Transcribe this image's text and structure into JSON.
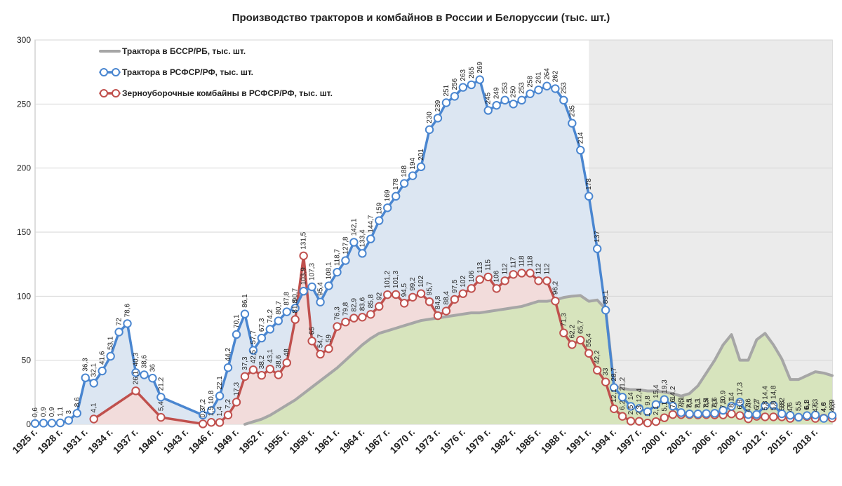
{
  "chart_data": {
    "type": "line",
    "title": "Производство тракторов и комбайнов в России и Белоруссии (тыс. шт.)",
    "xlabel": "",
    "ylabel": "",
    "ylim": [
      0,
      300
    ],
    "yticks": [
      "0",
      "50",
      "100",
      "150",
      "200",
      "250",
      "300"
    ],
    "xlim": [
      1925,
      2020
    ],
    "xtick_years": [
      1925,
      1928,
      1931,
      1934,
      1937,
      1940,
      1943,
      1946,
      1949,
      1952,
      1955,
      1958,
      1961,
      1964,
      1967,
      1970,
      1973,
      1976,
      1979,
      1982,
      1985,
      1988,
      1991,
      1994,
      1997,
      2000,
      2003,
      2006,
      2009,
      2012,
      2015,
      2018
    ],
    "xtick_labels": [
      "1925 г.",
      "1928 г.",
      "1931 г.",
      "1934 г.",
      "1937 г.",
      "1940 г.",
      "1943 г.",
      "1946 г.",
      "1949 г.",
      "1952 г.",
      "1955 г.",
      "1958 г.",
      "1961 г.",
      "1964 г.",
      "1967 г.",
      "1970 г.",
      "1973 г.",
      "1976 г.",
      "1979 г.",
      "1982 г.",
      "1985 г.",
      "1988 г.",
      "1991 г.",
      "1994 г.",
      "1997 г.",
      "2000 г.",
      "2003 г.",
      "2006 г.",
      "2009 г.",
      "2012 г.",
      "2015 г.",
      "2018 г."
    ],
    "grid": "horizontal",
    "legend": "top-left",
    "shaded_period": [
      1991,
      2020
    ],
    "series": [
      {
        "name": "Трактора в БССР/РБ, тыс. шт.",
        "color": "#a6a6a6",
        "fill": "#d7e4bd",
        "points": [
          [
            1950,
            0
          ],
          [
            1951,
            2
          ],
          [
            1952,
            4
          ],
          [
            1953,
            7
          ],
          [
            1954,
            11
          ],
          [
            1955,
            15
          ],
          [
            1956,
            19
          ],
          [
            1957,
            24
          ],
          [
            1958,
            29
          ],
          [
            1959,
            34
          ],
          [
            1960,
            39
          ],
          [
            1961,
            44
          ],
          [
            1962,
            50
          ],
          [
            1963,
            56
          ],
          [
            1964,
            62
          ],
          [
            1965,
            67
          ],
          [
            1966,
            71
          ],
          [
            1967,
            73
          ],
          [
            1968,
            75
          ],
          [
            1969,
            77
          ],
          [
            1970,
            79
          ],
          [
            1971,
            81
          ],
          [
            1972,
            82
          ],
          [
            1973,
            83
          ],
          [
            1974,
            84
          ],
          [
            1975,
            85
          ],
          [
            1976,
            86
          ],
          [
            1977,
            87
          ],
          [
            1978,
            87
          ],
          [
            1979,
            88
          ],
          [
            1980,
            89
          ],
          [
            1981,
            90
          ],
          [
            1982,
            91
          ],
          [
            1983,
            92
          ],
          [
            1984,
            94
          ],
          [
            1985,
            96
          ],
          [
            1986,
            96
          ],
          [
            1987,
            97
          ],
          [
            1988,
            99
          ],
          [
            1989,
            100
          ],
          [
            1990,
            100.5
          ],
          [
            1991,
            96
          ],
          [
            1992,
            97
          ],
          [
            1993,
            90
          ],
          [
            1994,
            30
          ],
          [
            1995,
            28
          ],
          [
            1996,
            27
          ],
          [
            1997,
            27
          ],
          [
            1998,
            26
          ],
          [
            1999,
            26
          ],
          [
            2000,
            25
          ],
          [
            2001,
            24
          ],
          [
            2002,
            22
          ],
          [
            2003,
            24
          ],
          [
            2004,
            30
          ],
          [
            2005,
            40
          ],
          [
            2006,
            50
          ],
          [
            2007,
            62
          ],
          [
            2008,
            70
          ],
          [
            2009,
            50
          ],
          [
            2010,
            50
          ],
          [
            2011,
            66
          ],
          [
            2012,
            71
          ],
          [
            2013,
            62
          ],
          [
            2014,
            51
          ],
          [
            2015,
            35
          ],
          [
            2016,
            35
          ],
          [
            2017,
            38
          ],
          [
            2018,
            41
          ],
          [
            2019,
            40
          ],
          [
            2020,
            38
          ]
        ]
      },
      {
        "name": "Трактора в РСФСР/РФ, тыс. шт.",
        "color": "#4a86d0",
        "fill": "#dce6f2",
        "points": [
          [
            1925,
            0.6
          ],
          [
            1926,
            0.9
          ],
          [
            1927,
            0.9
          ],
          [
            1928,
            1.1
          ],
          [
            1929,
            3
          ],
          [
            1930,
            8.6
          ],
          [
            1931,
            36.3
          ],
          [
            1932,
            32.1
          ],
          [
            1933,
            41.6
          ],
          [
            1934,
            53.1
          ],
          [
            1935,
            72
          ],
          [
            1936,
            78.6
          ],
          [
            1937,
            40.3
          ],
          [
            1938,
            38.6
          ],
          [
            1939,
            36
          ],
          [
            1940,
            21.2
          ],
          [
            1945,
            7.2
          ],
          [
            1946,
            10.8
          ],
          [
            1947,
            22.1
          ],
          [
            1948,
            44.2
          ],
          [
            1949,
            70.1
          ],
          [
            1950,
            86.1
          ],
          [
            1951,
            57.7
          ],
          [
            1952,
            67.3
          ],
          [
            1953,
            74.2
          ],
          [
            1954,
            80.7
          ],
          [
            1955,
            87.8
          ],
          [
            1956,
            90.7
          ],
          [
            1957,
            103.9
          ],
          [
            1958,
            107.3
          ],
          [
            1959,
            95.4
          ],
          [
            1960,
            108.1
          ],
          [
            1961,
            118.7
          ],
          [
            1962,
            127.8
          ],
          [
            1963,
            142.1
          ],
          [
            1964,
            133.4
          ],
          [
            1965,
            144.7
          ],
          [
            1966,
            159
          ],
          [
            1967,
            169
          ],
          [
            1968,
            178
          ],
          [
            1969,
            188
          ],
          [
            1970,
            194
          ],
          [
            1971,
            201
          ],
          [
            1972,
            230
          ],
          [
            1973,
            239
          ],
          [
            1974,
            251
          ],
          [
            1975,
            256
          ],
          [
            1976,
            263
          ],
          [
            1977,
            265
          ],
          [
            1978,
            269
          ],
          [
            1979,
            245
          ],
          [
            1980,
            249
          ],
          [
            1981,
            253
          ],
          [
            1982,
            250
          ],
          [
            1983,
            253
          ],
          [
            1984,
            258
          ],
          [
            1985,
            261
          ],
          [
            1986,
            264
          ],
          [
            1987,
            262
          ],
          [
            1988,
            253
          ],
          [
            1989,
            235
          ],
          [
            1990,
            214
          ],
          [
            1991,
            178
          ],
          [
            1992,
            137
          ],
          [
            1993,
            89.1
          ],
          [
            1994,
            28.7
          ],
          [
            1995,
            21.2
          ],
          [
            1996,
            14
          ],
          [
            1997,
            12.4
          ],
          [
            1998,
            9.8
          ],
          [
            1999,
            15.4
          ],
          [
            2000,
            19.3
          ],
          [
            2001,
            14.2
          ],
          [
            2002,
            9.1
          ],
          [
            2003,
            8.1
          ],
          [
            2004,
            8.1
          ],
          [
            2005,
            8.4
          ],
          [
            2006,
            8.6
          ],
          [
            2007,
            10.9
          ],
          [
            2008,
            14
          ],
          [
            2009,
            17.3
          ],
          [
            2010,
            7.6
          ],
          [
            2011,
            7.7
          ],
          [
            2012,
            14.4
          ],
          [
            2013,
            14.8
          ],
          [
            2014,
            8.2
          ],
          [
            2015,
            7
          ],
          [
            2016,
            5.5
          ],
          [
            2017,
            6.8
          ],
          [
            2018,
            7.3
          ],
          [
            2019,
            4.6
          ],
          [
            2020,
            6.9
          ]
        ],
        "labels": [
          "0,6",
          "0,9",
          "0,9",
          "1,1",
          "3",
          "8,6",
          "36,3",
          "32,1",
          "41,6",
          "53,1",
          "72",
          "78,6",
          "40,3",
          "38,6",
          "36",
          "21,2",
          "7,2",
          "10,8",
          "22,1",
          "44,2",
          "70,1",
          "86,1",
          "57,7",
          "67,3",
          "74,2",
          "80,7",
          "87,8",
          "90,7",
          "103,9",
          "107,3",
          "95,4",
          "108,1",
          "118,7",
          "127,8",
          "142,1",
          "133,4",
          "144,7",
          "159",
          "169",
          "178",
          "188",
          "194",
          "201",
          "230",
          "239",
          "251",
          "256",
          "263",
          "265",
          "269",
          "245",
          "249",
          "253",
          "250",
          "253",
          "258",
          "261",
          "264",
          "262",
          "253",
          "235",
          "214",
          "178",
          "137",
          "89,1",
          "28,7",
          "21,2",
          "14",
          "12,4",
          "9,8",
          "15,4",
          "19,3",
          "14,2",
          "9,1",
          "8,1",
          "8,1",
          "8,4",
          "8,6",
          "10,9",
          "14",
          "17,3",
          "7,6",
          "7,7",
          "14,4",
          "14,8",
          "8,2",
          "7",
          "5,5",
          "6,8",
          "7,3",
          "4,6",
          "6,9"
        ]
      },
      {
        "name": "Зерноуборочные комбайны в РСФСР/РФ, тыс. шт.",
        "color": "#c0504d",
        "fill": "#f2dcdb",
        "points": [
          [
            1932,
            4.1
          ],
          [
            1937,
            26.1
          ],
          [
            1940,
            5.4
          ],
          [
            1945,
            0.3
          ],
          [
            1946,
            1.5
          ],
          [
            1947,
            1.4
          ],
          [
            1948,
            7.2
          ],
          [
            1949,
            17.3
          ],
          [
            1950,
            37.3
          ],
          [
            1951,
            42.5
          ],
          [
            1952,
            38.2
          ],
          [
            1953,
            43.1
          ],
          [
            1954,
            38.6
          ],
          [
            1955,
            48
          ],
          [
            1956,
            81.8
          ],
          [
            1957,
            131.5
          ],
          [
            1958,
            65
          ],
          [
            1959,
            54.7
          ],
          [
            1960,
            59
          ],
          [
            1961,
            76.3
          ],
          [
            1962,
            79.8
          ],
          [
            1963,
            82.9
          ],
          [
            1964,
            83.6
          ],
          [
            1965,
            85.8
          ],
          [
            1966,
            92
          ],
          [
            1967,
            101.2
          ],
          [
            1968,
            101.3
          ],
          [
            1969,
            94.5
          ],
          [
            1970,
            99.2
          ],
          [
            1971,
            102
          ],
          [
            1972,
            95.7
          ],
          [
            1973,
            84.8
          ],
          [
            1974,
            88.4
          ],
          [
            1975,
            97.5
          ],
          [
            1976,
            102
          ],
          [
            1977,
            106
          ],
          [
            1978,
            113
          ],
          [
            1979,
            115
          ],
          [
            1980,
            106
          ],
          [
            1981,
            112
          ],
          [
            1982,
            117
          ],
          [
            1983,
            118
          ],
          [
            1984,
            118
          ],
          [
            1985,
            112
          ],
          [
            1986,
            112
          ],
          [
            1987,
            96.2
          ],
          [
            1988,
            71.3
          ],
          [
            1989,
            62.2
          ],
          [
            1990,
            65.7
          ],
          [
            1991,
            55.4
          ],
          [
            1992,
            42.2
          ],
          [
            1993,
            33
          ],
          [
            1994,
            12.1
          ],
          [
            1995,
            6.2
          ],
          [
            1996,
            2.5
          ],
          [
            1997,
            2.3
          ],
          [
            1998,
            1
          ],
          [
            1999,
            2.1
          ],
          [
            2000,
            5.1
          ],
          [
            2001,
            7.6
          ],
          [
            2002,
            7.5
          ],
          [
            2003,
            7.5
          ],
          [
            2004,
            7.3
          ],
          [
            2005,
            7.5
          ],
          [
            2006,
            7.3
          ],
          [
            2007,
            7.3
          ],
          [
            2008,
            8.1
          ],
          [
            2009,
            6.8
          ],
          [
            2010,
            4.3
          ],
          [
            2011,
            6.2
          ],
          [
            2012,
            5.8
          ],
          [
            2013,
            5.8
          ],
          [
            2014,
            5.8
          ],
          [
            2015,
            4.6
          ],
          [
            2016,
            5.5
          ],
          [
            2017,
            6.1
          ],
          [
            2018,
            4.6
          ],
          [
            2019,
            4.8
          ],
          [
            2020,
            4.8
          ]
        ],
        "labels": [
          "4,1",
          "26,1",
          "5,4",
          "0,3",
          "1,5",
          "1,4",
          "7,2",
          "17,3",
          "37,3",
          "42,5",
          "38,2",
          "43,1",
          "38,6",
          "48",
          "81,8",
          "131,5",
          "65",
          "54,7",
          "59",
          "76,3",
          "79,8",
          "82,9",
          "83,6",
          "85,8",
          "92",
          "101,2",
          "101,3",
          "94,5",
          "99,2",
          "102",
          "95,7",
          "84,8",
          "88,4",
          "97,5",
          "102",
          "106",
          "113",
          "115",
          "106",
          "112",
          "117",
          "118",
          "118",
          "112",
          "112",
          "96,2",
          "71,3",
          "62,2",
          "65,7",
          "55,4",
          "42,2",
          "33",
          "12,1",
          "6,2",
          "2,5",
          "2,3",
          "1",
          "2,1",
          "5,1",
          "7,6",
          "7,5",
          "7,5",
          "7,3",
          "7,5",
          "7,3",
          "7,3",
          "8,1",
          "6,8",
          "4,3",
          "6,2",
          "5,8",
          "5,8",
          "5,8",
          "4,6",
          "5,5",
          "6,1",
          "4,6",
          "4,8",
          "4,8"
        ]
      }
    ]
  }
}
